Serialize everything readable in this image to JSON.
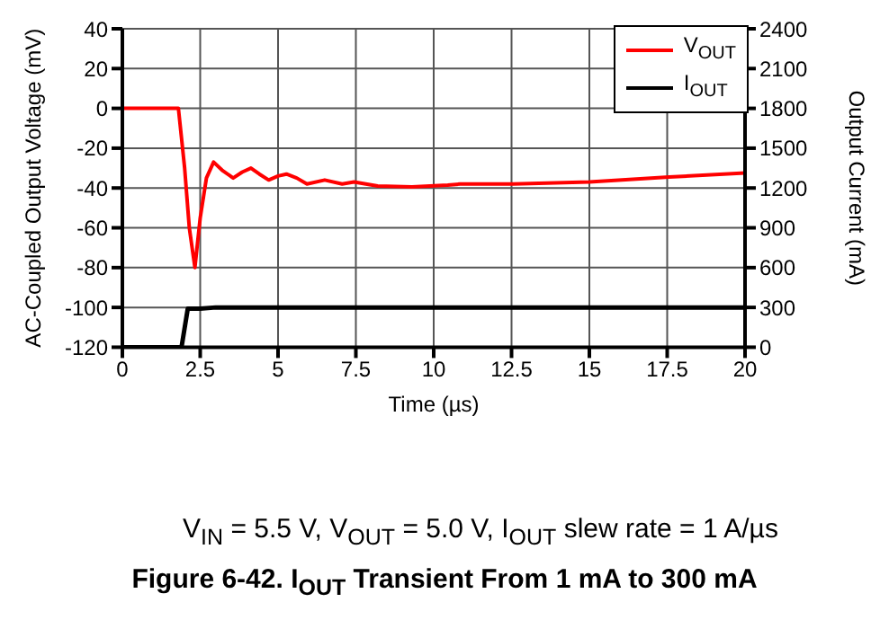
{
  "chart_data": {
    "type": "line",
    "title": "Figure 6-42. I$_{OUT}$ Transient From 1 mA to 300 mA",
    "subtitle": "V$_{IN}$ = 5.5 V, V$_{OUT}$ = 5.0 V, I$_{OUT}$ slew rate = 1 A/µs",
    "xlabel": "Time (µs)",
    "ylabel": "AC-Coupled Output Voltage (mV)",
    "y2label": "Output Current (mA)",
    "xlim": [
      0,
      20
    ],
    "xticks": [
      0,
      2.5,
      5,
      7.5,
      10,
      12.5,
      15,
      17.5,
      20
    ],
    "ylim": [
      -120,
      40
    ],
    "yticks": [
      -120,
      -100,
      -80,
      -60,
      -40,
      -20,
      0,
      20,
      40
    ],
    "y2lim": [
      0,
      2400
    ],
    "y2ticks": [
      0,
      300,
      600,
      900,
      1200,
      1500,
      1800,
      2100,
      2400
    ],
    "grid": true,
    "legend": "top right",
    "series": [
      {
        "name": "V$_{OUT}$",
        "color": "#ff0000",
        "x": [
          0,
          0.5,
          1,
          1.5,
          1.8,
          2.0,
          2.15,
          2.33,
          2.5,
          2.7,
          2.93,
          3.2,
          3.56,
          3.85,
          4.13,
          4.4,
          4.7,
          5.0,
          5.27,
          5.6,
          5.93,
          6.5,
          7.06,
          7.44,
          8.2,
          9.3,
          10.45,
          10.85,
          12.56,
          15,
          17.56,
          20
        ],
        "values": [
          0,
          0,
          0,
          0,
          0,
          -30,
          -60,
          -80,
          -55,
          -35,
          -27,
          -31,
          -35,
          -32,
          -30,
          -33,
          -36,
          -34,
          -33,
          -35,
          -38,
          -36,
          -38,
          -37,
          -39,
          -39.5,
          -38.5,
          -38,
          -38,
          -37,
          -34.5,
          -32.5
        ]
      },
      {
        "name": "I$_{OUT}$",
        "color": "#000000",
        "axis": "y2",
        "x": [
          0,
          1.9,
          2.1,
          2.5,
          3,
          5,
          10,
          15,
          20
        ],
        "values": [
          0,
          0,
          290,
          290,
          300,
          300,
          300,
          300,
          300
        ]
      }
    ]
  }
}
